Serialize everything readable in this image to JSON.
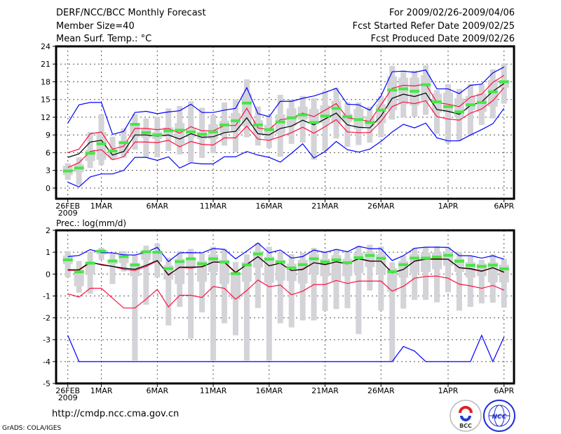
{
  "header": {
    "title": "DERF/NCC/BCC Monthly Forecast",
    "member_size": "Member Size=40",
    "variable": "Mean Surf. Temp.: °C",
    "period": "For 2009/02/26-2009/04/06",
    "started": "Fcst Started Refer Date 2009/02/25",
    "produced": "Fcst Produced Date 2009/02/26"
  },
  "footer": {
    "url": "http://cmdp.ncc.cma.gov.cn",
    "grads": "GrADS: COLA/IGES",
    "logo_bcc": "BCC",
    "logo_ncc": "NCC"
  },
  "colors": {
    "max_min": "#0000ff",
    "spread": "#ff1040",
    "mean": "#000000",
    "median": "#44e844",
    "box": "#d3d3d8"
  },
  "chart_data": [
    {
      "type": "box-line",
      "title": "Mean Surf. Temp.: °C",
      "ylabel": "",
      "ylim": [
        -1.8,
        24
      ],
      "yticks": [
        0,
        3,
        6,
        9,
        12,
        15,
        18,
        21,
        24
      ],
      "xticks": [
        {
          "day": 0,
          "label": "26FEB",
          "sub": "2009"
        },
        {
          "day": 3,
          "label": "1MAR"
        },
        {
          "day": 8,
          "label": "6MAR"
        },
        {
          "day": 13,
          "label": "11MAR"
        },
        {
          "day": 18,
          "label": "16MAR"
        },
        {
          "day": 23,
          "label": "21MAR"
        },
        {
          "day": 28,
          "label": "26MAR"
        },
        {
          "day": 34,
          "label": "1APR"
        },
        {
          "day": 39,
          "label": "6APR"
        }
      ],
      "grid": true,
      "series": {
        "max": [
          11.0,
          14.1,
          14.5,
          14.5,
          9.1,
          9.6,
          12.8,
          13.0,
          12.6,
          12.9,
          13.1,
          14.2,
          12.8,
          12.8,
          13.2,
          13.5,
          17.0,
          12.6,
          12.1,
          14.7,
          14.7,
          15.2,
          15.6,
          16.2,
          16.9,
          14.2,
          14.1,
          13.2,
          15.6,
          19.7,
          19.8,
          19.6,
          20.0,
          16.8,
          16.8,
          16.0,
          17.4,
          17.6,
          19.5,
          20.5
        ],
        "upper": [
          6.0,
          6.6,
          9.2,
          9.5,
          6.6,
          7.1,
          10.1,
          10.1,
          9.9,
          10.1,
          9.3,
          10.4,
          9.7,
          9.7,
          10.6,
          10.6,
          13.5,
          10.2,
          9.9,
          11.6,
          11.8,
          12.7,
          12.1,
          13.2,
          14.3,
          11.9,
          11.6,
          11.3,
          14.1,
          16.9,
          17.4,
          17.3,
          17.6,
          14.5,
          14.2,
          13.8,
          15.4,
          15.9,
          17.9,
          19.1
        ],
        "mean": [
          5.2,
          5.8,
          7.8,
          8.1,
          5.6,
          6.2,
          9.0,
          9.0,
          8.8,
          9.0,
          8.3,
          9.2,
          8.6,
          8.7,
          9.4,
          9.6,
          11.9,
          9.2,
          9.0,
          10.1,
          10.5,
          11.5,
          10.7,
          11.7,
          12.7,
          10.7,
          10.3,
          10.2,
          12.2,
          15.2,
          15.9,
          15.5,
          16.1,
          13.3,
          13.0,
          12.5,
          14.0,
          14.6,
          16.4,
          17.7
        ],
        "lower": [
          3.5,
          4.3,
          6.2,
          6.5,
          4.8,
          5.3,
          7.8,
          7.8,
          7.7,
          8.1,
          7.0,
          7.9,
          7.4,
          7.3,
          8.5,
          8.5,
          10.5,
          8.3,
          8.1,
          8.7,
          9.4,
          10.3,
          9.3,
          10.4,
          11.6,
          9.5,
          9.4,
          9.4,
          11.3,
          13.8,
          14.6,
          14.3,
          14.8,
          12.1,
          11.7,
          11.5,
          12.7,
          13.4,
          14.8,
          17.0
        ],
        "min": [
          1.0,
          0.2,
          1.9,
          2.4,
          2.4,
          3.0,
          5.2,
          5.2,
          4.7,
          5.3,
          3.4,
          4.3,
          4.1,
          4.1,
          5.3,
          5.3,
          6.2,
          5.6,
          5.2,
          4.4,
          5.9,
          7.5,
          5.1,
          6.2,
          7.9,
          6.5,
          6.1,
          6.6,
          7.9,
          9.5,
          10.8,
          10.2,
          11.0,
          8.5,
          8.0,
          8.0,
          9.0,
          9.9,
          10.9,
          13.5
        ],
        "median": [
          2.9,
          3.4,
          5.9,
          7.5,
          6.3,
          7.7,
          10.8,
          9.4,
          9.0,
          9.7,
          9.8,
          9.5,
          9.1,
          9.5,
          10.7,
          11.4,
          14.4,
          10.7,
          9.9,
          11.2,
          11.9,
          12.4,
          11.1,
          12.2,
          13.5,
          12.1,
          11.6,
          11.1,
          13.2,
          16.6,
          16.8,
          16.4,
          17.5,
          14.6,
          13.8,
          12.9,
          14.1,
          14.5,
          16.3,
          18.0
        ],
        "whisker_low": [
          1.4,
          0.5,
          3.4,
          3.9,
          4.8,
          5.2,
          6.5,
          5.2,
          5.2,
          6.3,
          5.7,
          4.4,
          5.1,
          5.9,
          7.2,
          6.1,
          8.6,
          7.2,
          6.8,
          5.3,
          7.5,
          7.7,
          4.8,
          6.3,
          8.4,
          7.0,
          7.3,
          7.7,
          8.6,
          11.6,
          12.0,
          12.1,
          12.4,
          9.2,
          7.6,
          8.0,
          8.8,
          10.7,
          11.8,
          14.3
        ],
        "whisker_high": [
          4.2,
          5.2,
          9.5,
          12.5,
          8.7,
          10.1,
          12.5,
          11.8,
          12.1,
          13.5,
          13.9,
          14.7,
          13.6,
          12.4,
          14.5,
          15.0,
          18.4,
          13.8,
          12.3,
          15.8,
          15.0,
          15.6,
          15.2,
          16.5,
          17.0,
          14.5,
          14.5,
          13.8,
          15.6,
          20.7,
          19.9,
          19.9,
          20.8,
          16.6,
          17.6,
          16.8,
          17.6,
          17.6,
          20.1,
          21.1
        ],
        "box_low": [
          2.2,
          2.7,
          4.6,
          4.8,
          5.2,
          6.0,
          8.6,
          8.5,
          8.3,
          8.7,
          7.5,
          8.6,
          8.3,
          8.3,
          9.4,
          9.6,
          10.5,
          9.0,
          8.3,
          9.2,
          10.5,
          11.6,
          11.2,
          11.0,
          11.0,
          11.2,
          10.0,
          10.4,
          11.0,
          13.2,
          14.2,
          14.0,
          14.8,
          12.8,
          12.8,
          12.0,
          13.2,
          12.9,
          13.8,
          17.0
        ],
        "box_high": [
          3.8,
          4.0,
          6.5,
          9.5,
          6.5,
          8.0,
          11.0,
          10.0,
          9.5,
          10.3,
          11.0,
          10.1,
          9.5,
          10.8,
          11.4,
          12.7,
          16.0,
          11.5,
          10.7,
          12.5,
          13.5,
          13.8,
          13.4,
          14.0,
          14.8,
          12.6,
          13.4,
          12.2,
          14.2,
          18.9,
          18.7,
          18.7,
          19.1,
          16.0,
          16.2,
          15.2,
          15.6,
          16.0,
          18.3,
          18.3
        ]
      }
    },
    {
      "type": "box-line",
      "title": "Prec.: log(mm/d)",
      "ylabel": "",
      "ylim": [
        -5,
        2
      ],
      "yticks": [
        -5,
        -4,
        -3,
        -2,
        -1,
        0,
        1,
        2
      ],
      "xticks": [
        {
          "day": 0,
          "label": "26FEB",
          "sub": "2009"
        },
        {
          "day": 3,
          "label": "1MAR"
        },
        {
          "day": 8,
          "label": "6MAR"
        },
        {
          "day": 13,
          "label": "11MAR"
        },
        {
          "day": 18,
          "label": "16MAR"
        },
        {
          "day": 23,
          "label": "21MAR"
        },
        {
          "day": 28,
          "label": "26MAR"
        },
        {
          "day": 34,
          "label": "1APR"
        },
        {
          "day": 39,
          "label": "6APR"
        }
      ],
      "grid": true,
      "series": {
        "max": [
          0.8,
          0.85,
          1.12,
          0.98,
          0.97,
          0.88,
          0.87,
          1.0,
          1.22,
          0.57,
          0.97,
          0.98,
          0.97,
          1.17,
          1.13,
          0.7,
          1.05,
          1.42,
          0.97,
          1.1,
          0.73,
          0.8,
          1.1,
          0.99,
          1.13,
          1.02,
          1.27,
          1.16,
          1.16,
          0.62,
          0.84,
          1.18,
          1.23,
          1.23,
          1.22,
          0.84,
          0.84,
          0.73,
          0.84,
          0.68
        ],
        "upper": [
          0.17,
          0.17,
          0.52,
          0.45,
          0.35,
          0.22,
          0.17,
          0.35,
          0.6,
          -0.02,
          0.3,
          0.27,
          0.35,
          0.55,
          0.53,
          0.05,
          0.45,
          0.8,
          0.38,
          0.5,
          0.16,
          0.23,
          0.52,
          0.45,
          0.56,
          0.46,
          0.72,
          0.6,
          0.59,
          0.07,
          0.21,
          0.6,
          0.7,
          0.7,
          0.68,
          0.29,
          0.23,
          0.12,
          0.29,
          0.07
        ],
        "mean": [
          0.2,
          0.2,
          0.55,
          0.42,
          0.35,
          0.27,
          0.22,
          0.4,
          0.62,
          -0.05,
          0.32,
          0.32,
          0.33,
          0.55,
          0.55,
          0.08,
          0.43,
          0.8,
          0.38,
          0.5,
          0.16,
          0.21,
          0.52,
          0.43,
          0.56,
          0.48,
          0.7,
          0.59,
          0.59,
          0.05,
          0.21,
          0.59,
          0.68,
          0.68,
          0.68,
          0.29,
          0.25,
          0.14,
          0.29,
          0.09
        ],
        "lower": [
          -0.9,
          -1.05,
          -0.65,
          -0.65,
          -1.1,
          -1.55,
          -1.55,
          -1.15,
          -0.7,
          -1.5,
          -0.97,
          -0.97,
          -1.07,
          -0.57,
          -0.65,
          -1.15,
          -0.75,
          -0.27,
          -0.58,
          -0.5,
          -0.95,
          -0.78,
          -0.48,
          -0.48,
          -0.29,
          -0.43,
          -0.32,
          -0.32,
          -0.32,
          -0.78,
          -0.56,
          -0.19,
          -0.11,
          -0.09,
          -0.19,
          -0.46,
          -0.54,
          -0.65,
          -0.52,
          -0.73
        ],
        "min": [
          -2.8,
          -4,
          -4,
          -4,
          -4,
          -4,
          -4,
          -4,
          -4,
          -4,
          -4,
          -4,
          -4,
          -4,
          -4,
          -4,
          -4,
          -4,
          -4,
          -4,
          -4,
          -4,
          -4,
          -4,
          -4,
          -4,
          -4,
          -4,
          -4,
          -4,
          -3.31,
          -3.52,
          -4,
          -4,
          -4,
          -4,
          -4,
          -2.8,
          -4,
          -2.88
        ],
        "median": [
          0.65,
          0.1,
          0.5,
          1.05,
          0.6,
          0.8,
          0.42,
          1.02,
          1.0,
          0.25,
          0.57,
          0.7,
          0.47,
          0.7,
          0.55,
          0.02,
          0.42,
          0.92,
          0.68,
          0.55,
          0.28,
          0.43,
          0.7,
          0.56,
          0.65,
          0.52,
          0.75,
          0.85,
          0.72,
          0.11,
          0.43,
          0.73,
          0.73,
          0.78,
          0.86,
          0.59,
          0.4,
          0.35,
          0.41,
          0.24
        ],
        "whisker_low": [
          -0.15,
          -0.85,
          -0.9,
          0.65,
          -0.45,
          0.12,
          -3.95,
          -1.4,
          -0.15,
          -2.35,
          -1.5,
          -2.95,
          -1.75,
          -3.95,
          -2.25,
          -2.8,
          -3.95,
          -1.55,
          -3.95,
          -2.25,
          -2.44,
          -2.12,
          -2.12,
          -1.69,
          -1.6,
          -1.56,
          -2.74,
          -0.75,
          -1.67,
          -3.98,
          -1.58,
          -1.18,
          -1.18,
          -1.29,
          -0.83,
          -1.67,
          -1.5,
          -1.34,
          -1.31,
          -1.53
        ],
        "whisker_high": [
          1.05,
          0.6,
          1.0,
          1.2,
          0.95,
          1.05,
          0.9,
          1.3,
          1.4,
          0.75,
          1.05,
          1.15,
          0.95,
          1.25,
          1.15,
          0.55,
          0.9,
          1.42,
          1.25,
          1.0,
          0.91,
          0.97,
          1.2,
          1.05,
          1.15,
          1.05,
          1.29,
          1.34,
          1.26,
          0.54,
          0.84,
          1.2,
          1.24,
          1.27,
          1.24,
          1.02,
          0.81,
          0.65,
          0.91,
          0.7
        ],
        "box_low": [
          0.45,
          -0.55,
          0,
          0.9,
          0.45,
          0.5,
          -0.1,
          0.65,
          0.55,
          -0.25,
          -0.45,
          0.3,
          -0.35,
          0.1,
          -0.45,
          -1.15,
          -0.35,
          0.3,
          -0.4,
          -0.3,
          -0.32,
          -0.43,
          0,
          -0.1,
          -0.32,
          -0.1,
          0.05,
          0.32,
          0,
          -0.81,
          -0.16,
          0.05,
          0.1,
          0.22,
          0.38,
          0.1,
          -0.16,
          -0.09,
          -0.38,
          -0.38
        ],
        "box_high": [
          0.85,
          0.2,
          0.55,
          1.1,
          0.65,
          0.9,
          0.5,
          1.05,
          1.05,
          0.4,
          0.7,
          0.75,
          0.6,
          0.9,
          0.65,
          0.1,
          0.55,
          1.05,
          0.8,
          0.65,
          0.48,
          0.65,
          0.91,
          0.7,
          0.86,
          0.7,
          0.97,
          1.02,
          0.91,
          0.27,
          0.59,
          0.91,
          0.97,
          0.99,
          0.99,
          0.7,
          0.54,
          0.48,
          0.54,
          0.43
        ]
      }
    }
  ]
}
